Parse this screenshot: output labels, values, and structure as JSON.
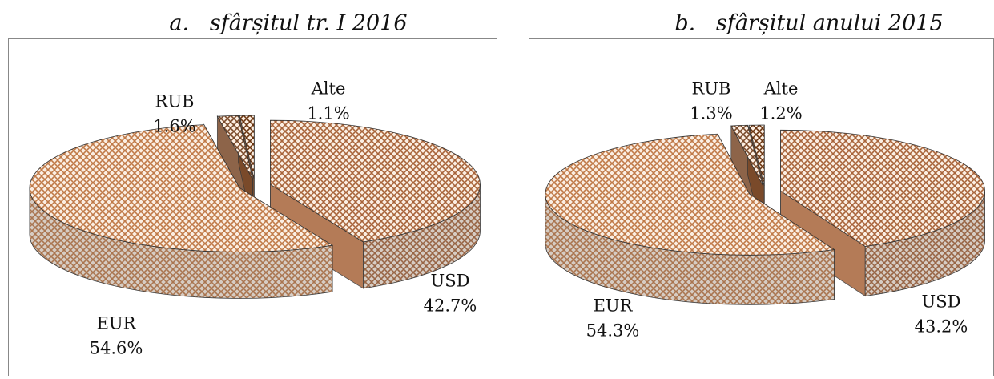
{
  "chart_data": [
    {
      "type": "pie",
      "title": "a.   sfârșitul tr. I 2016",
      "categories": [
        "USD",
        "EUR",
        "RUB",
        "Alte"
      ],
      "values": [
        42.7,
        54.6,
        1.6,
        1.1
      ],
      "value_labels": [
        "42.7%",
        "54.6%",
        "1.6%",
        "1.1%"
      ],
      "colors": [
        "#a8643a",
        "#c07a48",
        "#7a4a2a",
        "#6b3510"
      ]
    },
    {
      "type": "pie",
      "title": "b.   sfârșitul anului 2015",
      "categories": [
        "USD",
        "EUR",
        "RUB",
        "Alte"
      ],
      "values": [
        43.2,
        54.3,
        1.3,
        1.2
      ],
      "value_labels": [
        "43.2%",
        "54.3%",
        "1.3%",
        "1.2%"
      ],
      "colors": [
        "#a8643a",
        "#c07a48",
        "#7a4a2a",
        "#6b3510"
      ]
    }
  ]
}
